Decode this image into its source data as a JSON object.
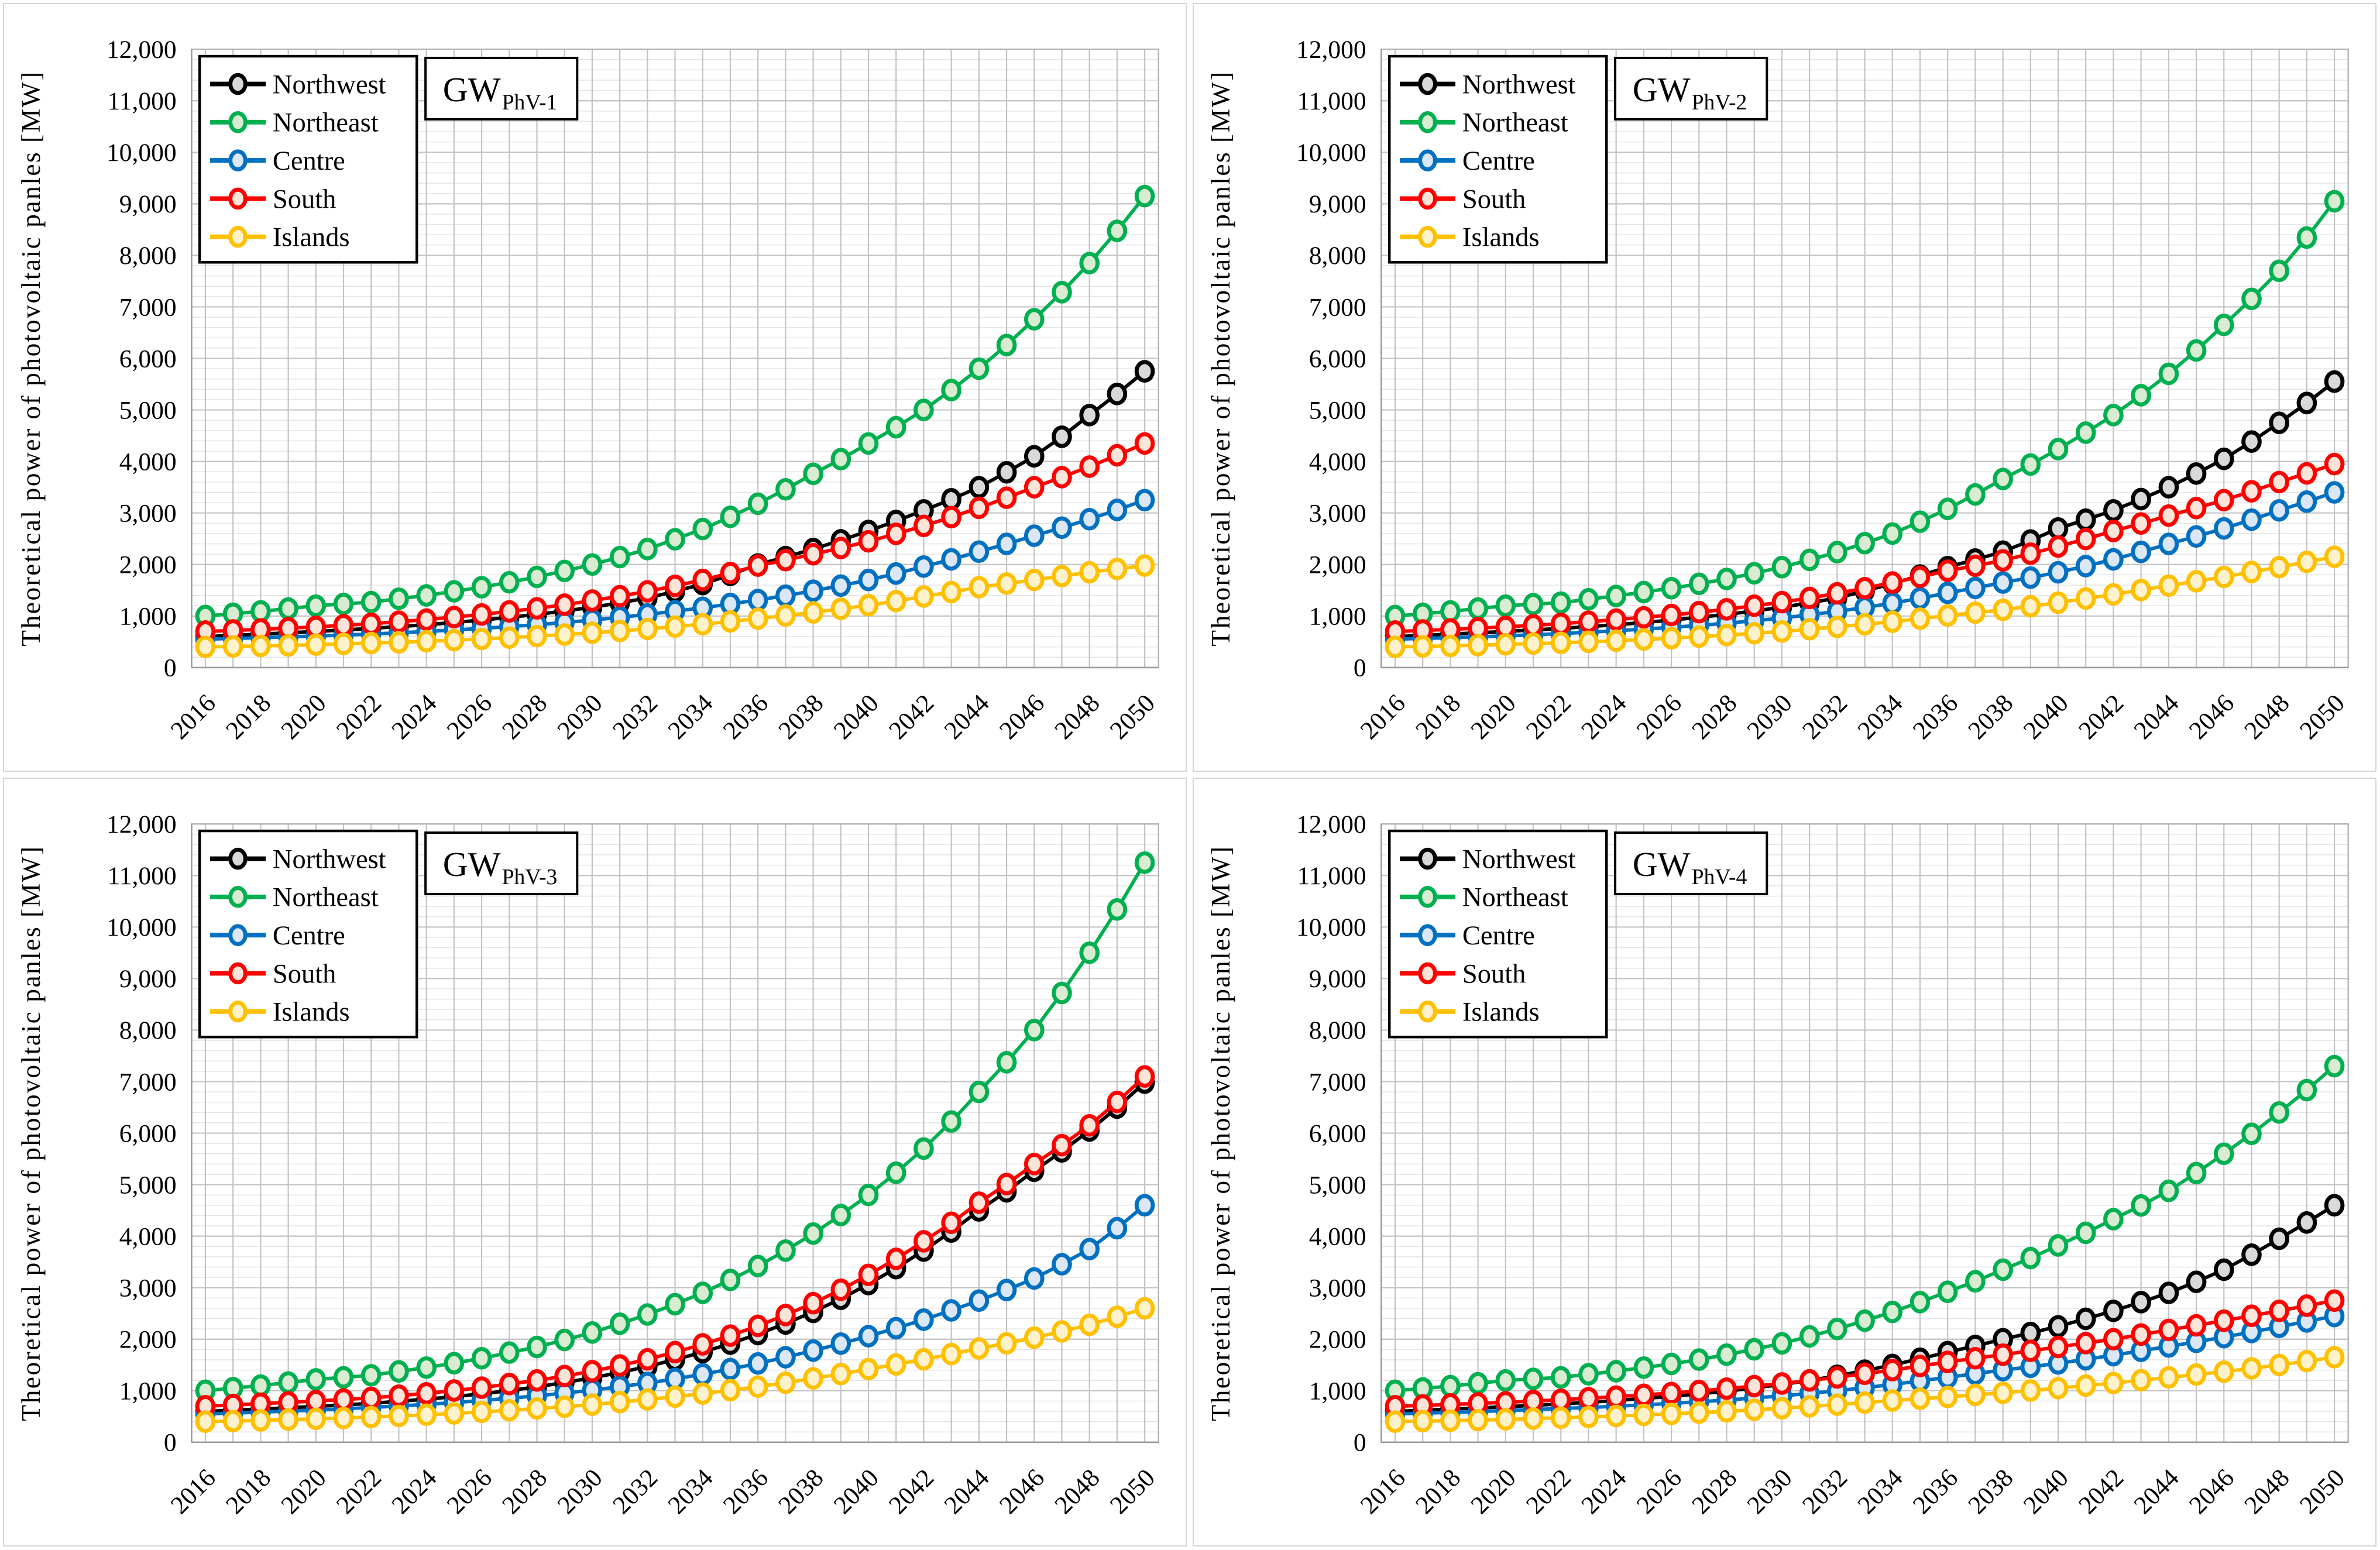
{
  "figure": {
    "background": "#ffffff",
    "ylabel": "Theoretical power of photovoltaic panles [MW]",
    "legend_labels": [
      "Northwest",
      "Northeast",
      "Centre",
      "South",
      "Islands"
    ],
    "series_colors": {
      "northwest": "#000000",
      "northeast": "#00b050",
      "centre": "#0070c0",
      "south": "#ff0000",
      "islands": "#ffc000"
    },
    "marker_fills": {
      "northwest": "#d9d9d9",
      "northeast": "#d9ecd2",
      "centre": "#dbe7f5",
      "south": "#fbe4d8",
      "islands": "#fdf2cc"
    },
    "grid_major_color": "#c3c3c3",
    "grid_minor_color": "#e4e4e4",
    "axis_color": "#9a9a9a"
  },
  "chart_data": [
    {
      "type": "line",
      "panel_label": "GW",
      "panel_label_sub": "PhV-1",
      "ylabel": "Theoretical power of photovoltaic panles [MW]",
      "ylim": [
        0,
        12000
      ],
      "y_tick_step": 1000,
      "y_minor_step": 200,
      "x_tick_every": 2,
      "legend_position": "top-left",
      "grid": true,
      "x": [
        2016,
        2017,
        2018,
        2019,
        2020,
        2021,
        2022,
        2023,
        2024,
        2025,
        2026,
        2027,
        2028,
        2029,
        2030,
        2031,
        2032,
        2033,
        2034,
        2035,
        2036,
        2037,
        2038,
        2039,
        2040,
        2041,
        2042,
        2043,
        2044,
        2045,
        2046,
        2047,
        2048,
        2049,
        2050
      ],
      "series": [
        {
          "name": "Northwest",
          "color": "#000000",
          "fill": "#d9d9d9",
          "values": [
            600,
            625,
            650,
            675,
            700,
            730,
            760,
            795,
            830,
            875,
            920,
            975,
            1030,
            1100,
            1170,
            1255,
            1350,
            1480,
            1620,
            1800,
            2000,
            2145,
            2300,
            2470,
            2650,
            2845,
            3050,
            3265,
            3500,
            3790,
            4100,
            4480,
            4900,
            5310,
            5750
          ]
        },
        {
          "name": "Northeast",
          "color": "#00b050",
          "fill": "#d9ecd2",
          "values": [
            1000,
            1045,
            1090,
            1145,
            1200,
            1235,
            1270,
            1335,
            1400,
            1480,
            1560,
            1655,
            1760,
            1875,
            2000,
            2145,
            2300,
            2490,
            2690,
            2925,
            3180,
            3460,
            3760,
            4045,
            4350,
            4665,
            5000,
            5385,
            5800,
            6260,
            6760,
            7285,
            7850,
            8475,
            9150
          ]
        },
        {
          "name": "Centre",
          "color": "#0070c0",
          "fill": "#dbe7f5",
          "values": [
            550,
            565,
            580,
            595,
            610,
            630,
            650,
            675,
            700,
            730,
            760,
            795,
            830,
            875,
            920,
            975,
            1030,
            1095,
            1160,
            1235,
            1310,
            1395,
            1490,
            1590,
            1700,
            1825,
            1960,
            2100,
            2250,
            2400,
            2560,
            2715,
            2880,
            3060,
            3250
          ]
        },
        {
          "name": "South",
          "color": "#ff0000",
          "fill": "#fbe4d8",
          "values": [
            700,
            720,
            740,
            765,
            790,
            820,
            850,
            890,
            930,
            980,
            1030,
            1090,
            1150,
            1220,
            1300,
            1385,
            1480,
            1585,
            1700,
            1835,
            1980,
            2085,
            2200,
            2320,
            2450,
            2595,
            2750,
            2920,
            3100,
            3295,
            3500,
            3695,
            3900,
            4120,
            4350
          ]
        },
        {
          "name": "Islands",
          "color": "#ffc000",
          "fill": "#fdf2cc",
          "values": [
            400,
            410,
            420,
            430,
            445,
            460,
            475,
            490,
            510,
            530,
            555,
            580,
            610,
            640,
            675,
            710,
            750,
            795,
            840,
            895,
            950,
            1010,
            1070,
            1140,
            1210,
            1290,
            1380,
            1465,
            1560,
            1630,
            1700,
            1775,
            1850,
            1915,
            1980
          ]
        }
      ]
    },
    {
      "type": "line",
      "panel_label": "GW",
      "panel_label_sub": "PhV-2",
      "ylabel": "Theoretical power of photovoltaic panles [MW]",
      "ylim": [
        0,
        12000
      ],
      "y_tick_step": 1000,
      "y_minor_step": 200,
      "x_tick_every": 2,
      "legend_position": "top-left",
      "grid": true,
      "x": [
        2016,
        2017,
        2018,
        2019,
        2020,
        2021,
        2022,
        2023,
        2024,
        2025,
        2026,
        2027,
        2028,
        2029,
        2030,
        2031,
        2032,
        2033,
        2034,
        2035,
        2036,
        2037,
        2038,
        2039,
        2040,
        2041,
        2042,
        2043,
        2044,
        2045,
        2046,
        2047,
        2048,
        2049,
        2050
      ],
      "series": [
        {
          "name": "Northwest",
          "color": "#000000",
          "fill": "#d9d9d9",
          "values": [
            600,
            625,
            650,
            675,
            700,
            730,
            760,
            795,
            830,
            875,
            920,
            975,
            1030,
            1100,
            1170,
            1255,
            1350,
            1485,
            1630,
            1785,
            1950,
            2095,
            2250,
            2465,
            2700,
            2870,
            3050,
            3270,
            3500,
            3765,
            4050,
            4385,
            4750,
            5135,
            5550
          ]
        },
        {
          "name": "Northeast",
          "color": "#00b050",
          "fill": "#d9ecd2",
          "values": [
            1000,
            1045,
            1090,
            1145,
            1200,
            1230,
            1260,
            1325,
            1390,
            1465,
            1540,
            1625,
            1720,
            1830,
            1950,
            2090,
            2240,
            2415,
            2600,
            2830,
            3080,
            3360,
            3660,
            3940,
            4240,
            4560,
            4900,
            5285,
            5700,
            6155,
            6650,
            7155,
            7700,
            8345,
            9050
          ]
        },
        {
          "name": "Centre",
          "color": "#0070c0",
          "fill": "#dbe7f5",
          "values": [
            550,
            565,
            580,
            595,
            615,
            635,
            660,
            685,
            715,
            745,
            780,
            820,
            860,
            910,
            960,
            1025,
            1090,
            1165,
            1250,
            1345,
            1450,
            1545,
            1650,
            1745,
            1850,
            1970,
            2100,
            2245,
            2400,
            2545,
            2700,
            2870,
            3050,
            3220,
            3400
          ]
        },
        {
          "name": "South",
          "color": "#ff0000",
          "fill": "#fbe4d8",
          "values": [
            700,
            720,
            740,
            765,
            790,
            820,
            850,
            890,
            930,
            975,
            1020,
            1075,
            1130,
            1200,
            1270,
            1350,
            1440,
            1540,
            1650,
            1760,
            1880,
            1975,
            2080,
            2210,
            2350,
            2495,
            2650,
            2795,
            2950,
            3095,
            3250,
            3420,
            3600,
            3770,
            3950
          ]
        },
        {
          "name": "Islands",
          "color": "#ffc000",
          "fill": "#fdf2cc",
          "values": [
            400,
            410,
            420,
            435,
            450,
            465,
            480,
            500,
            520,
            545,
            570,
            600,
            630,
            665,
            700,
            745,
            790,
            840,
            890,
            950,
            1010,
            1065,
            1120,
            1190,
            1260,
            1340,
            1420,
            1505,
            1590,
            1675,
            1760,
            1855,
            1950,
            2050,
            2150
          ]
        }
      ]
    },
    {
      "type": "line",
      "panel_label": "GW",
      "panel_label_sub": "PhV-3",
      "ylabel": "Theoretical power of photovoltaic panles [MW]",
      "ylim": [
        0,
        12000
      ],
      "y_tick_step": 1000,
      "y_minor_step": 200,
      "x_tick_every": 2,
      "legend_position": "top-left",
      "grid": true,
      "x": [
        2016,
        2017,
        2018,
        2019,
        2020,
        2021,
        2022,
        2023,
        2024,
        2025,
        2026,
        2027,
        2028,
        2029,
        2030,
        2031,
        2032,
        2033,
        2034,
        2035,
        2036,
        2037,
        2038,
        2039,
        2040,
        2041,
        2042,
        2043,
        2044,
        2045,
        2046,
        2047,
        2048,
        2049,
        2050
      ],
      "series": [
        {
          "name": "Northwest",
          "color": "#000000",
          "fill": "#d9d9d9",
          "values": [
            600,
            620,
            645,
            670,
            695,
            725,
            755,
            795,
            835,
            885,
            940,
            1005,
            1075,
            1160,
            1250,
            1355,
            1470,
            1605,
            1750,
            1915,
            2100,
            2305,
            2530,
            2785,
            3070,
            3380,
            3720,
            4090,
            4500,
            4870,
            5270,
            5645,
            6050,
            6495,
            6980
          ]
        },
        {
          "name": "Northeast",
          "color": "#00b050",
          "fill": "#d9ecd2",
          "values": [
            1000,
            1050,
            1100,
            1160,
            1220,
            1260,
            1300,
            1375,
            1450,
            1535,
            1630,
            1740,
            1850,
            1985,
            2130,
            2300,
            2480,
            2680,
            2900,
            3150,
            3420,
            3720,
            4050,
            4410,
            4800,
            5230,
            5700,
            6225,
            6800,
            7375,
            8000,
            8720,
            9500,
            10340,
            11250
          ]
        },
        {
          "name": "Centre",
          "color": "#0070c0",
          "fill": "#dbe7f5",
          "values": [
            550,
            565,
            585,
            605,
            625,
            650,
            675,
            705,
            735,
            770,
            810,
            855,
            900,
            955,
            1010,
            1080,
            1150,
            1230,
            1320,
            1420,
            1530,
            1650,
            1780,
            1915,
            2060,
            2215,
            2380,
            2560,
            2750,
            2955,
            3180,
            3455,
            3750,
            4155,
            4600
          ]
        },
        {
          "name": "South",
          "color": "#ff0000",
          "fill": "#fbe4d8",
          "values": [
            700,
            725,
            750,
            775,
            800,
            830,
            860,
            905,
            950,
            1005,
            1060,
            1130,
            1200,
            1285,
            1380,
            1490,
            1610,
            1750,
            1900,
            2070,
            2260,
            2470,
            2700,
            2960,
            3250,
            3560,
            3900,
            4260,
            4650,
            5010,
            5400,
            5765,
            6150,
            6605,
            7100
          ]
        },
        {
          "name": "Islands",
          "color": "#ffc000",
          "fill": "#fdf2cc",
          "values": [
            400,
            410,
            425,
            440,
            455,
            470,
            490,
            510,
            535,
            560,
            590,
            620,
            655,
            690,
            730,
            780,
            830,
            885,
            945,
            1010,
            1080,
            1155,
            1240,
            1325,
            1420,
            1510,
            1610,
            1710,
            1820,
            1920,
            2030,
            2150,
            2280,
            2435,
            2600
          ]
        }
      ]
    },
    {
      "type": "line",
      "panel_label": "GW",
      "panel_label_sub": "PhV-4",
      "ylabel": "Theoretical power of photovoltaic panles [MW]",
      "ylim": [
        0,
        12000
      ],
      "y_tick_step": 1000,
      "y_minor_step": 200,
      "x_tick_every": 2,
      "legend_position": "top-left",
      "grid": true,
      "x": [
        2016,
        2017,
        2018,
        2019,
        2020,
        2021,
        2022,
        2023,
        2024,
        2025,
        2026,
        2027,
        2028,
        2029,
        2030,
        2031,
        2032,
        2033,
        2034,
        2035,
        2036,
        2037,
        2038,
        2039,
        2040,
        2041,
        2042,
        2043,
        2044,
        2045,
        2046,
        2047,
        2048,
        2049,
        2050
      ],
      "series": [
        {
          "name": "Northwest",
          "color": "#000000",
          "fill": "#d9d9d9",
          "values": [
            600,
            620,
            645,
            665,
            690,
            715,
            745,
            775,
            810,
            850,
            890,
            940,
            990,
            1055,
            1120,
            1200,
            1290,
            1390,
            1500,
            1620,
            1750,
            1870,
            2000,
            2120,
            2250,
            2395,
            2550,
            2720,
            2900,
            3115,
            3350,
            3640,
            3950,
            4265,
            4600
          ]
        },
        {
          "name": "Northeast",
          "color": "#00b050",
          "fill": "#d9ecd2",
          "values": [
            1000,
            1045,
            1090,
            1145,
            1200,
            1230,
            1260,
            1320,
            1380,
            1450,
            1520,
            1605,
            1700,
            1805,
            1920,
            2055,
            2200,
            2360,
            2530,
            2720,
            2920,
            3125,
            3350,
            3575,
            3820,
            4065,
            4330,
            4595,
            4880,
            5225,
            5600,
            5985,
            6400,
            6835,
            7300
          ]
        },
        {
          "name": "Centre",
          "color": "#0070c0",
          "fill": "#dbe7f5",
          "values": [
            550,
            565,
            580,
            595,
            615,
            635,
            655,
            675,
            700,
            725,
            755,
            785,
            820,
            860,
            900,
            950,
            1000,
            1060,
            1120,
            1190,
            1260,
            1330,
            1400,
            1465,
            1530,
            1610,
            1690,
            1775,
            1860,
            1950,
            2040,
            2140,
            2240,
            2345,
            2450
          ]
        },
        {
          "name": "South",
          "color": "#ff0000",
          "fill": "#fbe4d8",
          "values": [
            700,
            715,
            735,
            755,
            775,
            800,
            825,
            855,
            885,
            920,
            955,
            995,
            1040,
            1090,
            1140,
            1200,
            1260,
            1330,
            1400,
            1480,
            1560,
            1630,
            1700,
            1775,
            1850,
            1925,
            2000,
            2090,
            2180,
            2270,
            2360,
            2455,
            2550,
            2650,
            2750
          ]
        },
        {
          "name": "Islands",
          "color": "#ffc000",
          "fill": "#fdf2cc",
          "values": [
            400,
            410,
            420,
            430,
            445,
            460,
            475,
            490,
            510,
            530,
            550,
            575,
            600,
            630,
            660,
            695,
            730,
            770,
            810,
            845,
            880,
            920,
            960,
            1005,
            1050,
            1100,
            1150,
            1205,
            1260,
            1315,
            1370,
            1435,
            1500,
            1575,
            1650
          ]
        }
      ]
    }
  ]
}
